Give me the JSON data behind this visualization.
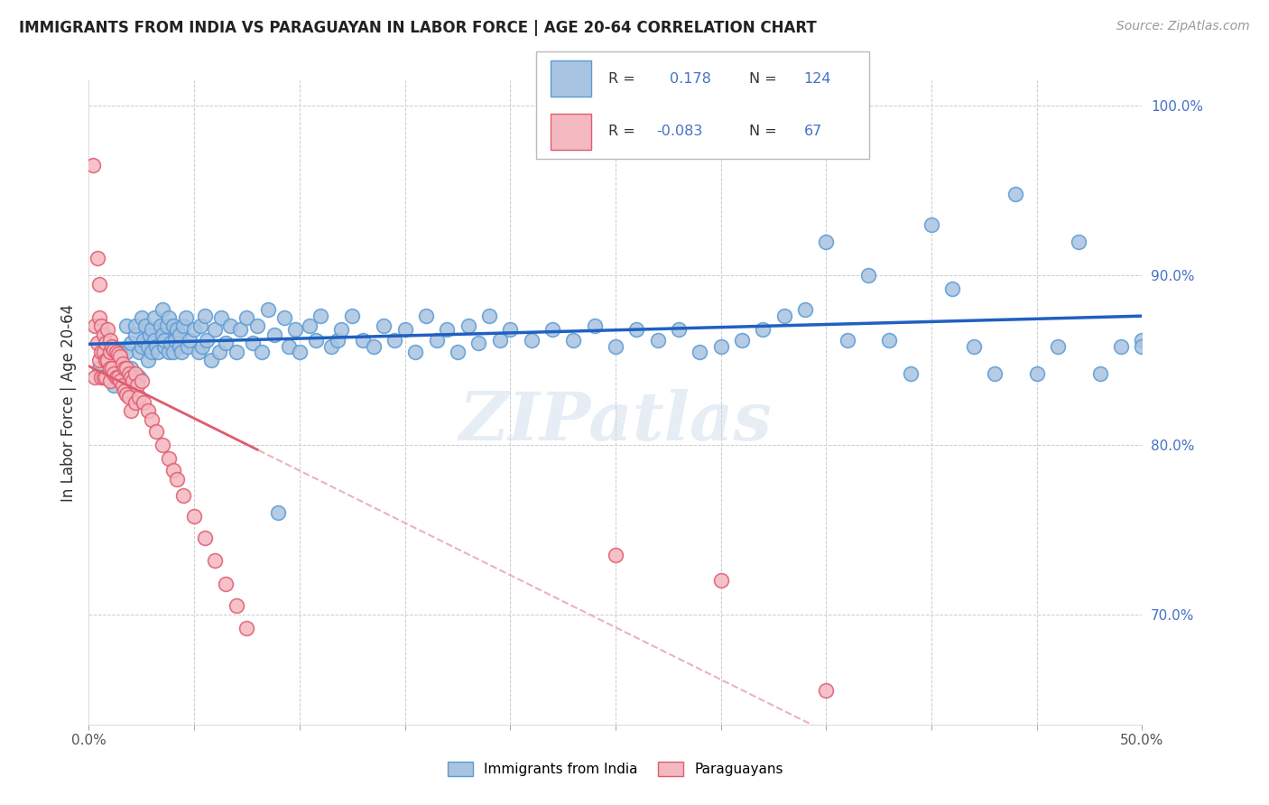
{
  "title": "IMMIGRANTS FROM INDIA VS PARAGUAYAN IN LABOR FORCE | AGE 20-64 CORRELATION CHART",
  "source": "Source: ZipAtlas.com",
  "ylabel": "In Labor Force | Age 20-64",
  "xlim": [
    0.0,
    0.5
  ],
  "ylim": [
    0.635,
    1.015
  ],
  "xticks": [
    0.0,
    0.05,
    0.1,
    0.15,
    0.2,
    0.25,
    0.3,
    0.35,
    0.4,
    0.45,
    0.5
  ],
  "yticks": [
    0.7,
    0.8,
    0.9,
    1.0
  ],
  "xticklabels": [
    "0.0%",
    "",
    "",
    "",
    "",
    "",
    "",
    "",
    "",
    "",
    "50.0%"
  ],
  "yticklabels": [
    "70.0%",
    "80.0%",
    "90.0%",
    "100.0%"
  ],
  "india_color": "#a8c4e0",
  "india_edge_color": "#5b9bd5",
  "paraguay_color": "#f4b8c1",
  "paraguay_edge_color": "#e05c6e",
  "india_R": 0.178,
  "india_N": 124,
  "paraguay_R": -0.083,
  "paraguay_N": 67,
  "india_line_color": "#2060c0",
  "paraguay_line_solid_color": "#e05c6e",
  "paraguay_line_dash_color": "#e8a0a8",
  "watermark": "ZIPatlas",
  "background_color": "#ffffff",
  "grid_color": "#cccccc",
  "legend_box_blue": "#a8c4e0",
  "legend_box_pink": "#f4b8c1",
  "india_scatter_x": [
    0.005,
    0.008,
    0.01,
    0.012,
    0.015,
    0.018,
    0.018,
    0.02,
    0.02,
    0.022,
    0.022,
    0.024,
    0.024,
    0.025,
    0.025,
    0.026,
    0.027,
    0.028,
    0.028,
    0.029,
    0.03,
    0.03,
    0.031,
    0.031,
    0.032,
    0.033,
    0.034,
    0.035,
    0.035,
    0.036,
    0.036,
    0.037,
    0.038,
    0.038,
    0.039,
    0.04,
    0.04,
    0.041,
    0.042,
    0.043,
    0.043,
    0.044,
    0.045,
    0.046,
    0.047,
    0.048,
    0.05,
    0.052,
    0.053,
    0.054,
    0.055,
    0.056,
    0.058,
    0.06,
    0.062,
    0.063,
    0.065,
    0.067,
    0.07,
    0.072,
    0.075,
    0.078,
    0.08,
    0.082,
    0.085,
    0.088,
    0.09,
    0.093,
    0.095,
    0.098,
    0.1,
    0.105,
    0.108,
    0.11,
    0.115,
    0.118,
    0.12,
    0.125,
    0.13,
    0.135,
    0.14,
    0.145,
    0.15,
    0.155,
    0.16,
    0.165,
    0.17,
    0.175,
    0.18,
    0.185,
    0.19,
    0.195,
    0.2,
    0.21,
    0.22,
    0.23,
    0.24,
    0.25,
    0.26,
    0.27,
    0.28,
    0.29,
    0.3,
    0.31,
    0.32,
    0.33,
    0.34,
    0.35,
    0.36,
    0.37,
    0.38,
    0.39,
    0.4,
    0.41,
    0.42,
    0.43,
    0.44,
    0.45,
    0.46,
    0.47,
    0.48,
    0.49,
    0.5,
    0.5
  ],
  "india_scatter_y": [
    0.845,
    0.85,
    0.84,
    0.835,
    0.855,
    0.87,
    0.855,
    0.86,
    0.845,
    0.865,
    0.87,
    0.855,
    0.84,
    0.875,
    0.858,
    0.862,
    0.87,
    0.85,
    0.858,
    0.865,
    0.855,
    0.868,
    0.875,
    0.862,
    0.858,
    0.855,
    0.87,
    0.865,
    0.88,
    0.858,
    0.862,
    0.87,
    0.855,
    0.875,
    0.86,
    0.87,
    0.855,
    0.862,
    0.868,
    0.858,
    0.865,
    0.855,
    0.87,
    0.875,
    0.858,
    0.862,
    0.868,
    0.855,
    0.87,
    0.858,
    0.876,
    0.862,
    0.85,
    0.868,
    0.855,
    0.875,
    0.86,
    0.87,
    0.855,
    0.868,
    0.875,
    0.86,
    0.87,
    0.855,
    0.88,
    0.865,
    0.76,
    0.875,
    0.858,
    0.868,
    0.855,
    0.87,
    0.862,
    0.876,
    0.858,
    0.862,
    0.868,
    0.876,
    0.862,
    0.858,
    0.87,
    0.862,
    0.868,
    0.855,
    0.876,
    0.862,
    0.868,
    0.855,
    0.87,
    0.86,
    0.876,
    0.862,
    0.868,
    0.862,
    0.868,
    0.862,
    0.87,
    0.858,
    0.868,
    0.862,
    0.868,
    0.855,
    0.858,
    0.862,
    0.868,
    0.876,
    0.88,
    0.92,
    0.862,
    0.9,
    0.862,
    0.842,
    0.93,
    0.892,
    0.858,
    0.842,
    0.948,
    0.842,
    0.858,
    0.92,
    0.842,
    0.858,
    0.862,
    0.858
  ],
  "paraguay_scatter_x": [
    0.002,
    0.003,
    0.003,
    0.004,
    0.004,
    0.005,
    0.005,
    0.005,
    0.006,
    0.006,
    0.006,
    0.007,
    0.007,
    0.007,
    0.008,
    0.008,
    0.008,
    0.009,
    0.009,
    0.01,
    0.01,
    0.01,
    0.01,
    0.011,
    0.011,
    0.012,
    0.012,
    0.013,
    0.013,
    0.014,
    0.014,
    0.015,
    0.015,
    0.016,
    0.016,
    0.017,
    0.017,
    0.018,
    0.018,
    0.019,
    0.019,
    0.02,
    0.02,
    0.021,
    0.022,
    0.022,
    0.023,
    0.024,
    0.025,
    0.026,
    0.028,
    0.03,
    0.032,
    0.035,
    0.038,
    0.04,
    0.042,
    0.045,
    0.05,
    0.055,
    0.06,
    0.065,
    0.07,
    0.075,
    0.25,
    0.3,
    0.35
  ],
  "paraguay_scatter_y": [
    0.965,
    0.87,
    0.84,
    0.91,
    0.86,
    0.895,
    0.875,
    0.85,
    0.87,
    0.855,
    0.84,
    0.865,
    0.855,
    0.84,
    0.86,
    0.85,
    0.84,
    0.868,
    0.85,
    0.862,
    0.855,
    0.845,
    0.838,
    0.858,
    0.845,
    0.856,
    0.842,
    0.855,
    0.84,
    0.854,
    0.84,
    0.852,
    0.838,
    0.848,
    0.835,
    0.845,
    0.832,
    0.845,
    0.83,
    0.842,
    0.828,
    0.84,
    0.82,
    0.838,
    0.842,
    0.825,
    0.835,
    0.828,
    0.838,
    0.825,
    0.82,
    0.815,
    0.808,
    0.8,
    0.792,
    0.785,
    0.78,
    0.77,
    0.758,
    0.745,
    0.732,
    0.718,
    0.705,
    0.692,
    0.735,
    0.72,
    0.655
  ]
}
